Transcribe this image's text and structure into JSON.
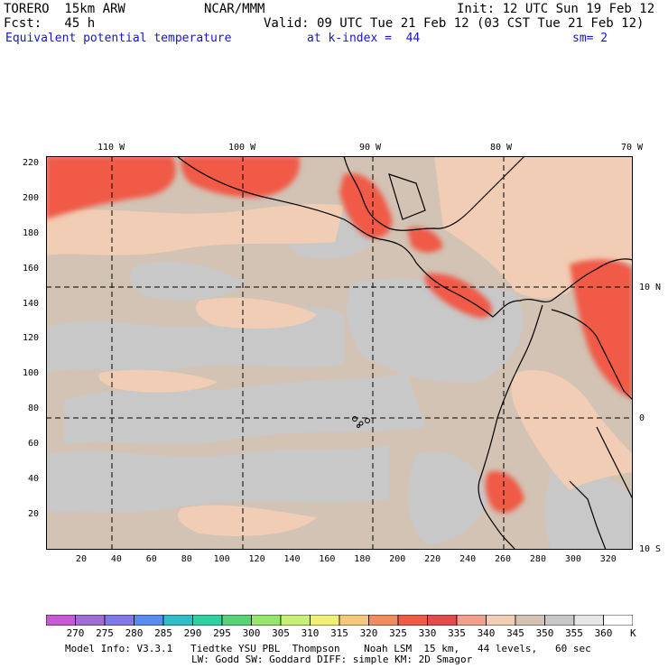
{
  "header": {
    "model": "TORERO  15km ARW",
    "center": "NCAR/MMM",
    "init": "Init: 12 UTC Sun 19 Feb 12",
    "fcst": "Fcst:   45 h",
    "valid": "Valid: 09 UTC Tue 21 Feb 12 (03 CST Tue 21 Feb 12)",
    "field": "Equivalent potential temperature",
    "level": "at k-index =  44",
    "smooth": "sm= 2"
  },
  "map": {
    "lon_labels": [
      "110 W",
      "100 W",
      "90 W",
      "80 W",
      "70 W"
    ],
    "lat_labels": [
      "10 N",
      "0",
      "10 S"
    ],
    "y_ticks": [
      "20",
      "40",
      "60",
      "80",
      "100",
      "120",
      "140",
      "160",
      "180",
      "200",
      "220"
    ],
    "x_ticks": [
      "20",
      "40",
      "60",
      "80",
      "100",
      "120",
      "140",
      "160",
      "180",
      "200",
      "220",
      "240",
      "260",
      "280",
      "300",
      "320"
    ]
  },
  "colorbar": {
    "labels": [
      "270",
      "275",
      "280",
      "285",
      "290",
      "295",
      "300",
      "305",
      "310",
      "315",
      "320",
      "325",
      "330",
      "335",
      "340",
      "345",
      "350",
      "355",
      "360"
    ],
    "unit": "K",
    "colors": [
      "#c85ad2",
      "#a06ed2",
      "#8278e6",
      "#5a8cf0",
      "#2dbec8",
      "#2dd2a0",
      "#5ad278",
      "#96e66e",
      "#c8f078",
      "#f0f078",
      "#f5c87d",
      "#f08c64",
      "#f05a46",
      "#e64b4b",
      "#f0a08c",
      "#f0cdb4",
      "#d2c3b4",
      "#c8c8c8",
      "#e6e6e6",
      "#ffffff"
    ]
  },
  "footer": {
    "line1": "Model Info: V3.3.1   Tiedtke YSU PBL  Thompson    Noah LSM  15 km,   44 levels,   60 sec",
    "line2": "LW: Godd SW: Goddard DIFF: simple KM: 2D Smagor"
  }
}
